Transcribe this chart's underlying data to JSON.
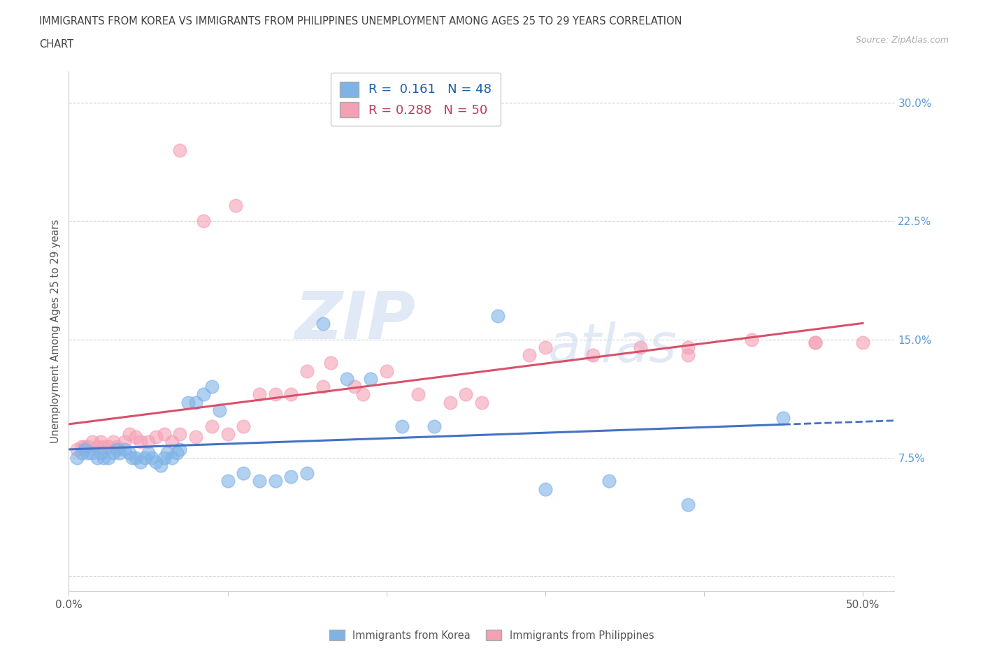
{
  "title_line1": "IMMIGRANTS FROM KOREA VS IMMIGRANTS FROM PHILIPPINES UNEMPLOYMENT AMONG AGES 25 TO 29 YEARS CORRELATION",
  "title_line2": "CHART",
  "source": "Source: ZipAtlas.com",
  "ylabel": "Unemployment Among Ages 25 to 29 years",
  "xlim": [
    0.0,
    0.52
  ],
  "ylim": [
    -0.01,
    0.32
  ],
  "korea_R": 0.161,
  "korea_N": 48,
  "philippines_R": 0.288,
  "philippines_N": 50,
  "korea_color": "#7fb3e8",
  "philippines_color": "#f4a0b5",
  "korea_line_color": "#4472c4",
  "philippines_line_color": "#d9506a",
  "watermark_zip": "ZIP",
  "watermark_atlas": "atlas",
  "ytick_color": "#5b9bd5",
  "korea_x": [
    0.005,
    0.008,
    0.01,
    0.012,
    0.015,
    0.018,
    0.02,
    0.022,
    0.025,
    0.028,
    0.03,
    0.032,
    0.035,
    0.038,
    0.04,
    0.042,
    0.045,
    0.048,
    0.05,
    0.052,
    0.055,
    0.058,
    0.06,
    0.062,
    0.065,
    0.068,
    0.07,
    0.075,
    0.08,
    0.085,
    0.09,
    0.095,
    0.1,
    0.11,
    0.12,
    0.13,
    0.14,
    0.15,
    0.16,
    0.175,
    0.19,
    0.21,
    0.23,
    0.27,
    0.3,
    0.34,
    0.39,
    0.45
  ],
  "korea_y": [
    0.075,
    0.078,
    0.08,
    0.078,
    0.078,
    0.075,
    0.078,
    0.075,
    0.075,
    0.078,
    0.08,
    0.078,
    0.08,
    0.078,
    0.075,
    0.075,
    0.072,
    0.075,
    0.078,
    0.075,
    0.072,
    0.07,
    0.075,
    0.078,
    0.075,
    0.078,
    0.08,
    0.11,
    0.11,
    0.115,
    0.12,
    0.105,
    0.06,
    0.065,
    0.06,
    0.06,
    0.063,
    0.065,
    0.16,
    0.125,
    0.125,
    0.095,
    0.095,
    0.165,
    0.055,
    0.06,
    0.045,
    0.1
  ],
  "phil_x": [
    0.005,
    0.008,
    0.01,
    0.012,
    0.015,
    0.018,
    0.02,
    0.022,
    0.025,
    0.028,
    0.03,
    0.035,
    0.038,
    0.042,
    0.045,
    0.05,
    0.055,
    0.06,
    0.065,
    0.07,
    0.08,
    0.09,
    0.1,
    0.11,
    0.12,
    0.13,
    0.14,
    0.16,
    0.18,
    0.2,
    0.22,
    0.24,
    0.26,
    0.29,
    0.33,
    0.36,
    0.39,
    0.43,
    0.47,
    0.5,
    0.07,
    0.085,
    0.105,
    0.15,
    0.165,
    0.185,
    0.25,
    0.3,
    0.39,
    0.47
  ],
  "phil_y": [
    0.08,
    0.082,
    0.082,
    0.082,
    0.085,
    0.082,
    0.085,
    0.082,
    0.082,
    0.085,
    0.082,
    0.085,
    0.09,
    0.088,
    0.085,
    0.085,
    0.088,
    0.09,
    0.085,
    0.09,
    0.088,
    0.095,
    0.09,
    0.095,
    0.115,
    0.115,
    0.115,
    0.12,
    0.12,
    0.13,
    0.115,
    0.11,
    0.11,
    0.14,
    0.14,
    0.145,
    0.145,
    0.15,
    0.148,
    0.148,
    0.27,
    0.225,
    0.235,
    0.13,
    0.135,
    0.115,
    0.115,
    0.145,
    0.14,
    0.148
  ]
}
